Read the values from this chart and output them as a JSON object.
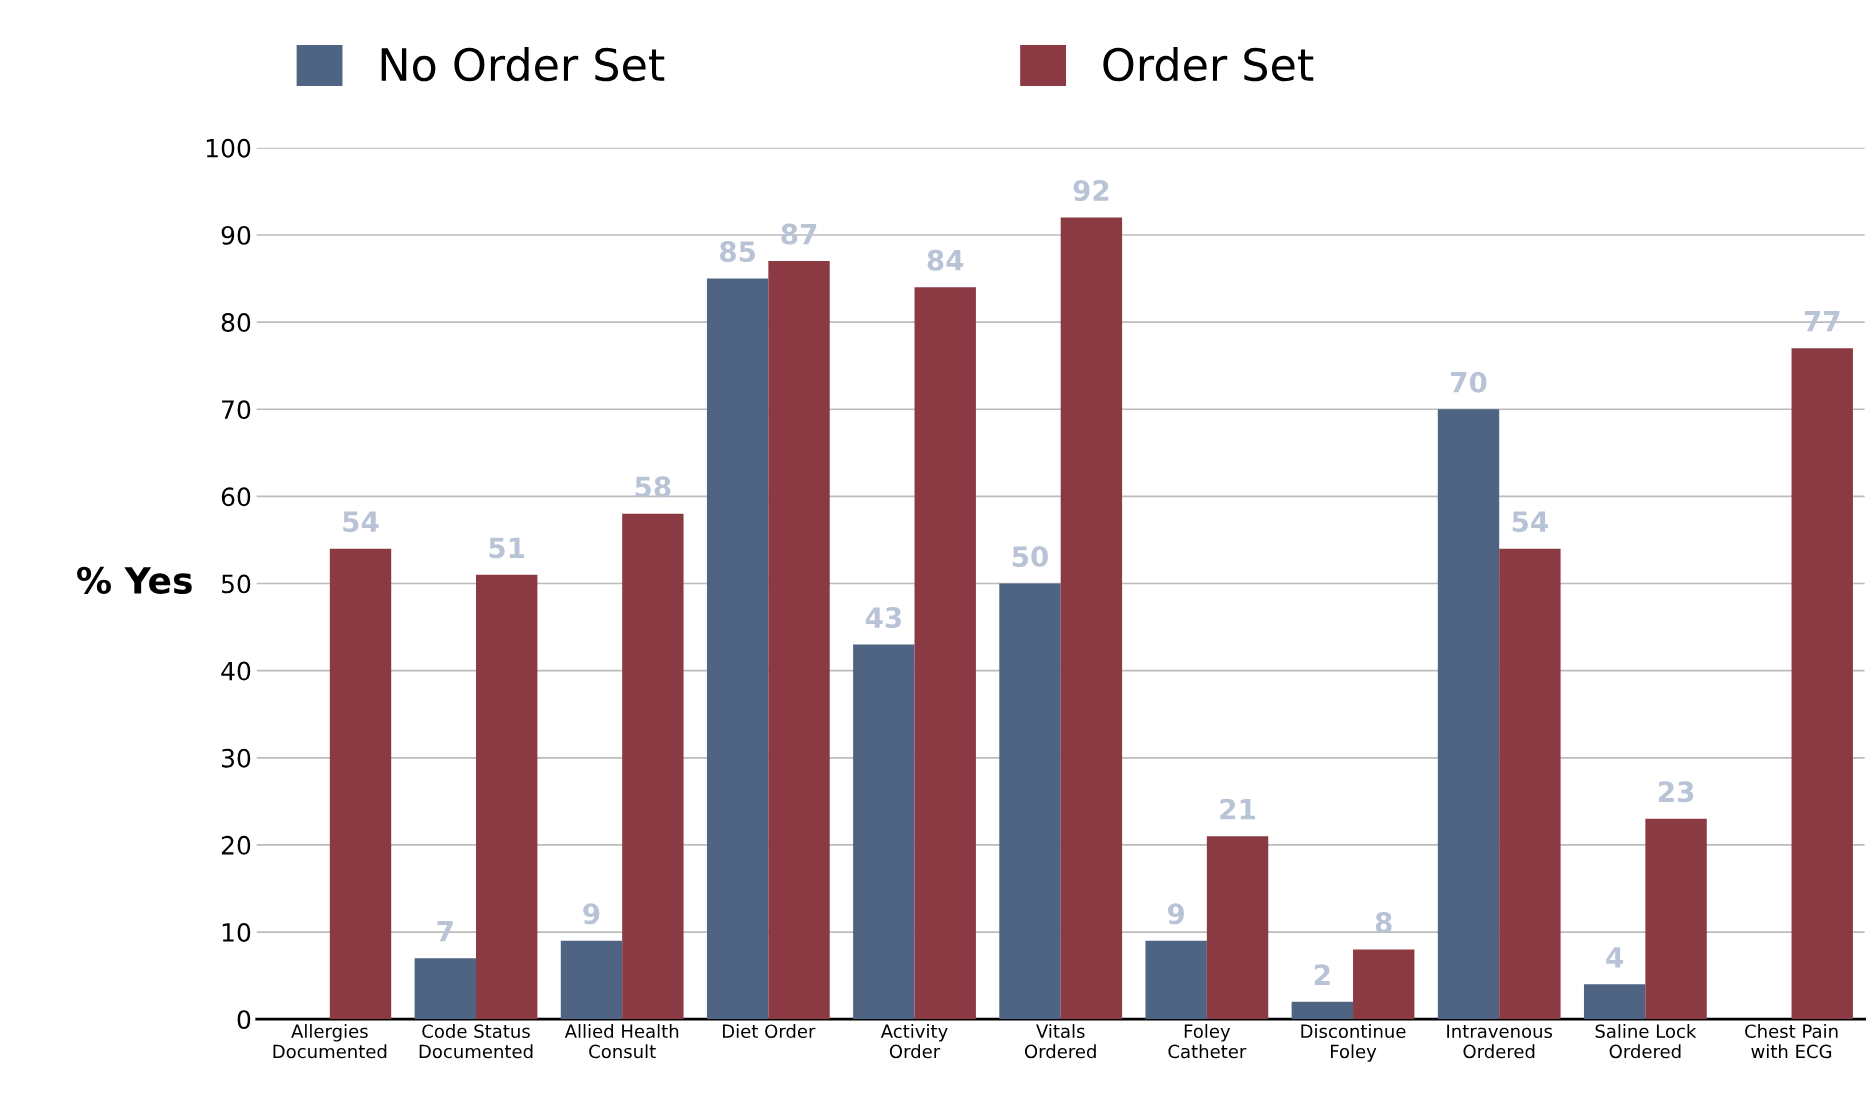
{
  "chart_data": {
    "type": "bar",
    "ylabel": "% Yes",
    "categories": [
      "Allergies\nDocumented",
      "Code Status\nDocumented",
      "Allied Health\nConsult",
      "Diet Order",
      "Activity\nOrder",
      "Vitals\nOrdered",
      "Foley\nCatheter",
      "Discontinue\nFoley",
      "Intravenous\nOrdered",
      "Saline Lock\nOrdered",
      "Chest Pain\nwith ECG"
    ],
    "series": [
      {
        "name": "No Order Set",
        "color": "#4f6482",
        "values": [
          null,
          7,
          9,
          85,
          43,
          50,
          9,
          2,
          70,
          4,
          null
        ]
      },
      {
        "name": "Order Set",
        "color": "#8b3a44",
        "values": [
          54,
          51,
          58,
          87,
          84,
          92,
          21,
          8,
          54,
          23,
          77
        ]
      }
    ],
    "ylim": [
      0,
      100
    ],
    "yticks": [
      0,
      10,
      20,
      30,
      40,
      50,
      60,
      70,
      80,
      90,
      100
    ],
    "grid": "y",
    "legend": "top",
    "data_labels": true
  }
}
